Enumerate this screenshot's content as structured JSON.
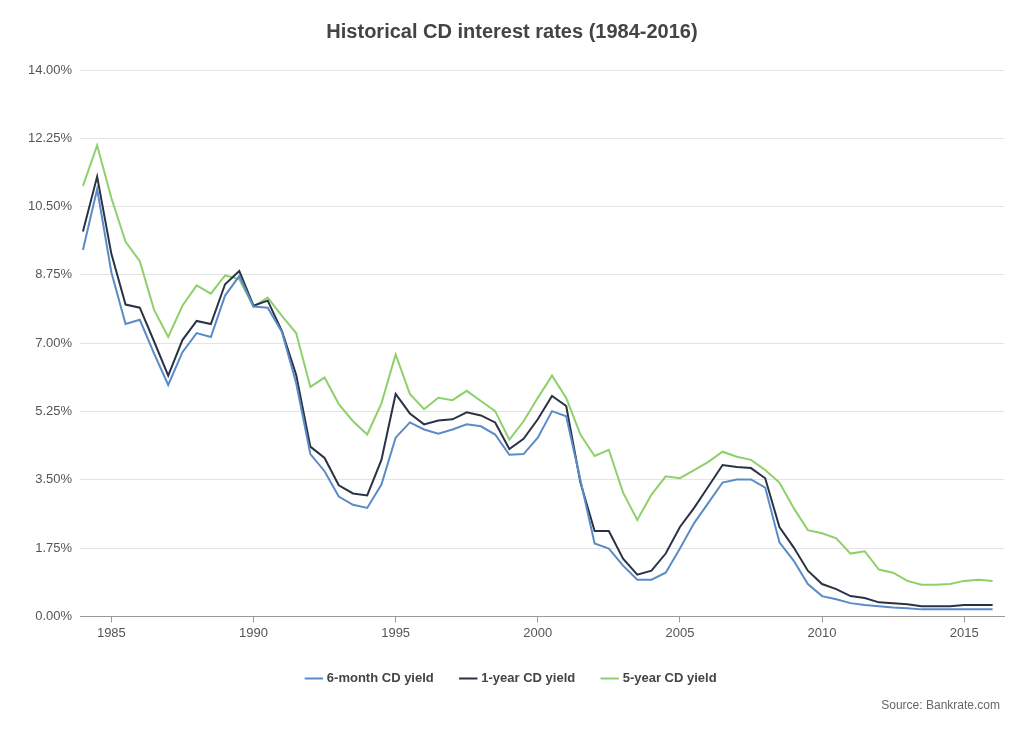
{
  "chart_data": {
    "type": "line",
    "title": "Historical CD interest rates (1984-2016)",
    "source": "Source: Bankrate.com",
    "x": [
      1984,
      1984.5,
      1985,
      1985.5,
      1986,
      1986.5,
      1987,
      1987.5,
      1988,
      1988.5,
      1989,
      1989.5,
      1990,
      1990.5,
      1991,
      1991.5,
      1992,
      1992.5,
      1993,
      1993.5,
      1994,
      1994.5,
      1995,
      1995.5,
      1996,
      1996.5,
      1997,
      1997.5,
      1998,
      1998.5,
      1999,
      1999.5,
      2000,
      2000.5,
      2001,
      2001.5,
      2002,
      2002.5,
      2003,
      2003.5,
      2004,
      2004.5,
      2005,
      2005.5,
      2006,
      2006.5,
      2007,
      2007.5,
      2008,
      2008.5,
      2009,
      2009.5,
      2010,
      2010.5,
      2011,
      2011.5,
      2012,
      2012.5,
      2013,
      2013.5,
      2014,
      2014.5,
      2015,
      2015.5,
      2016
    ],
    "series": [
      {
        "name": "6-month CD yield",
        "color": "#5b8bc7",
        "values": [
          9.39,
          10.95,
          8.82,
          7.49,
          7.6,
          6.74,
          5.93,
          6.77,
          7.26,
          7.16,
          8.22,
          8.72,
          7.94,
          7.91,
          7.29,
          5.98,
          4.16,
          3.72,
          3.07,
          2.86,
          2.78,
          3.38,
          4.58,
          4.97,
          4.79,
          4.68,
          4.79,
          4.92,
          4.87,
          4.66,
          4.14,
          4.16,
          4.58,
          5.26,
          5.13,
          3.49,
          1.87,
          1.74,
          1.3,
          0.94,
          0.94,
          1.12,
          1.74,
          2.39,
          2.91,
          3.43,
          3.51,
          3.51,
          3.3,
          1.9,
          1.43,
          0.83,
          0.52,
          0.44,
          0.34,
          0.29,
          0.26,
          0.23,
          0.21,
          0.18,
          0.18,
          0.18,
          0.18,
          0.18,
          0.18
        ]
      },
      {
        "name": "1-year CD yield",
        "color": "#2a3345",
        "values": [
          9.86,
          11.27,
          9.29,
          7.99,
          7.91,
          7.05,
          6.17,
          7.08,
          7.57,
          7.49,
          8.51,
          8.85,
          7.96,
          8.09,
          7.31,
          6.19,
          4.35,
          4.06,
          3.36,
          3.15,
          3.1,
          4.01,
          5.7,
          5.2,
          4.92,
          5.02,
          5.05,
          5.23,
          5.15,
          4.97,
          4.29,
          4.55,
          5.05,
          5.65,
          5.39,
          3.43,
          2.19,
          2.19,
          1.48,
          1.07,
          1.17,
          1.61,
          2.29,
          2.78,
          3.33,
          3.88,
          3.83,
          3.8,
          3.54,
          2.29,
          1.77,
          1.17,
          0.83,
          0.7,
          0.52,
          0.47,
          0.36,
          0.34,
          0.31,
          0.26,
          0.26,
          0.26,
          0.29,
          0.29,
          0.29
        ]
      },
      {
        "name": "5-year CD yield",
        "color": "#8ed06b",
        "values": [
          11.03,
          12.07,
          10.72,
          9.6,
          9.1,
          7.86,
          7.16,
          7.96,
          8.48,
          8.27,
          8.74,
          8.64,
          7.94,
          8.17,
          7.7,
          7.26,
          5.88,
          6.12,
          5.44,
          5.0,
          4.66,
          5.46,
          6.71,
          5.7,
          5.31,
          5.6,
          5.54,
          5.78,
          5.52,
          5.26,
          4.53,
          5.0,
          5.6,
          6.17,
          5.6,
          4.66,
          4.11,
          4.27,
          3.17,
          2.47,
          3.12,
          3.59,
          3.54,
          3.75,
          3.96,
          4.22,
          4.09,
          4.01,
          3.75,
          3.43,
          2.78,
          2.21,
          2.13,
          2.0,
          1.61,
          1.67,
          1.2,
          1.12,
          0.91,
          0.81,
          0.81,
          0.83,
          0.91,
          0.94,
          0.91
        ]
      }
    ],
    "xlim": [
      1983.9,
      2016.4
    ],
    "xticks": [
      1985,
      1990,
      1995,
      2000,
      2005,
      2010,
      2015
    ],
    "ylim": [
      0,
      14
    ],
    "yticks": [
      {
        "value": 0,
        "label": "0.00%"
      },
      {
        "value": 1.75,
        "label": "1.75%"
      },
      {
        "value": 3.5,
        "label": "3.50%"
      },
      {
        "value": 5.25,
        "label": "5.25%"
      },
      {
        "value": 7,
        "label": "7.00%"
      },
      {
        "value": 8.75,
        "label": "8.75%"
      },
      {
        "value": 10.5,
        "label": "10.50%"
      },
      {
        "value": 12.25,
        "label": "12.25%"
      },
      {
        "value": 14,
        "label": "14.00%"
      }
    ],
    "grid": true,
    "legend": "bottom"
  }
}
